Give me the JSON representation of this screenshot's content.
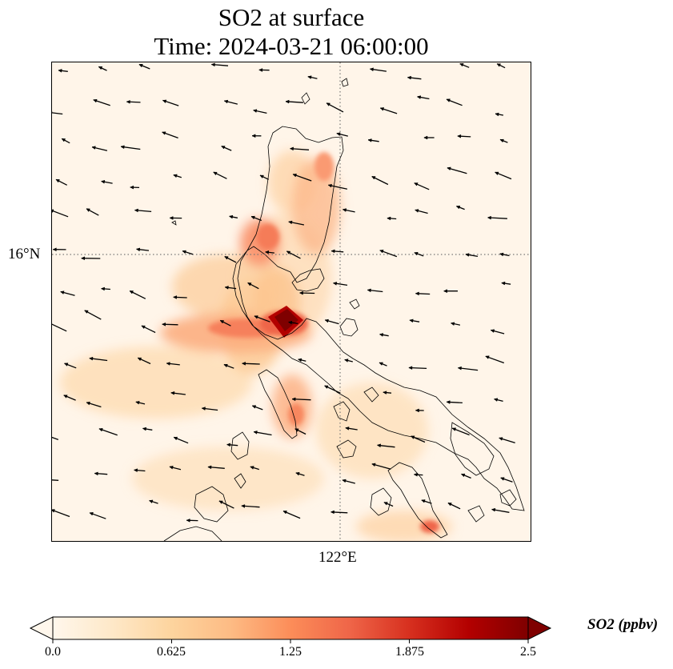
{
  "title": {
    "line1": "SO2 at surface",
    "line2": "Time: 2024-03-21 06:00:00"
  },
  "map": {
    "lat_label": "16°N",
    "lon_label": "122°E",
    "gridline_style": "dotted",
    "background_color": "#fff5e9",
    "coastline_color": "#000000"
  },
  "colorbar": {
    "label": "SO2 (ppbv)",
    "ticks": [
      "0.0",
      "0.625",
      "1.25",
      "1.875",
      "2.5"
    ],
    "min": 0.0,
    "max": 2.5,
    "extend": "both",
    "colormap": "OrRd",
    "colors": [
      "#fff7ec",
      "#fee8c8",
      "#fdd49e",
      "#fdbb84",
      "#fc8d59",
      "#ef6548",
      "#d7301f",
      "#b30000",
      "#7f0000"
    ]
  },
  "wind_vectors": {
    "description_color": "#000000"
  }
}
